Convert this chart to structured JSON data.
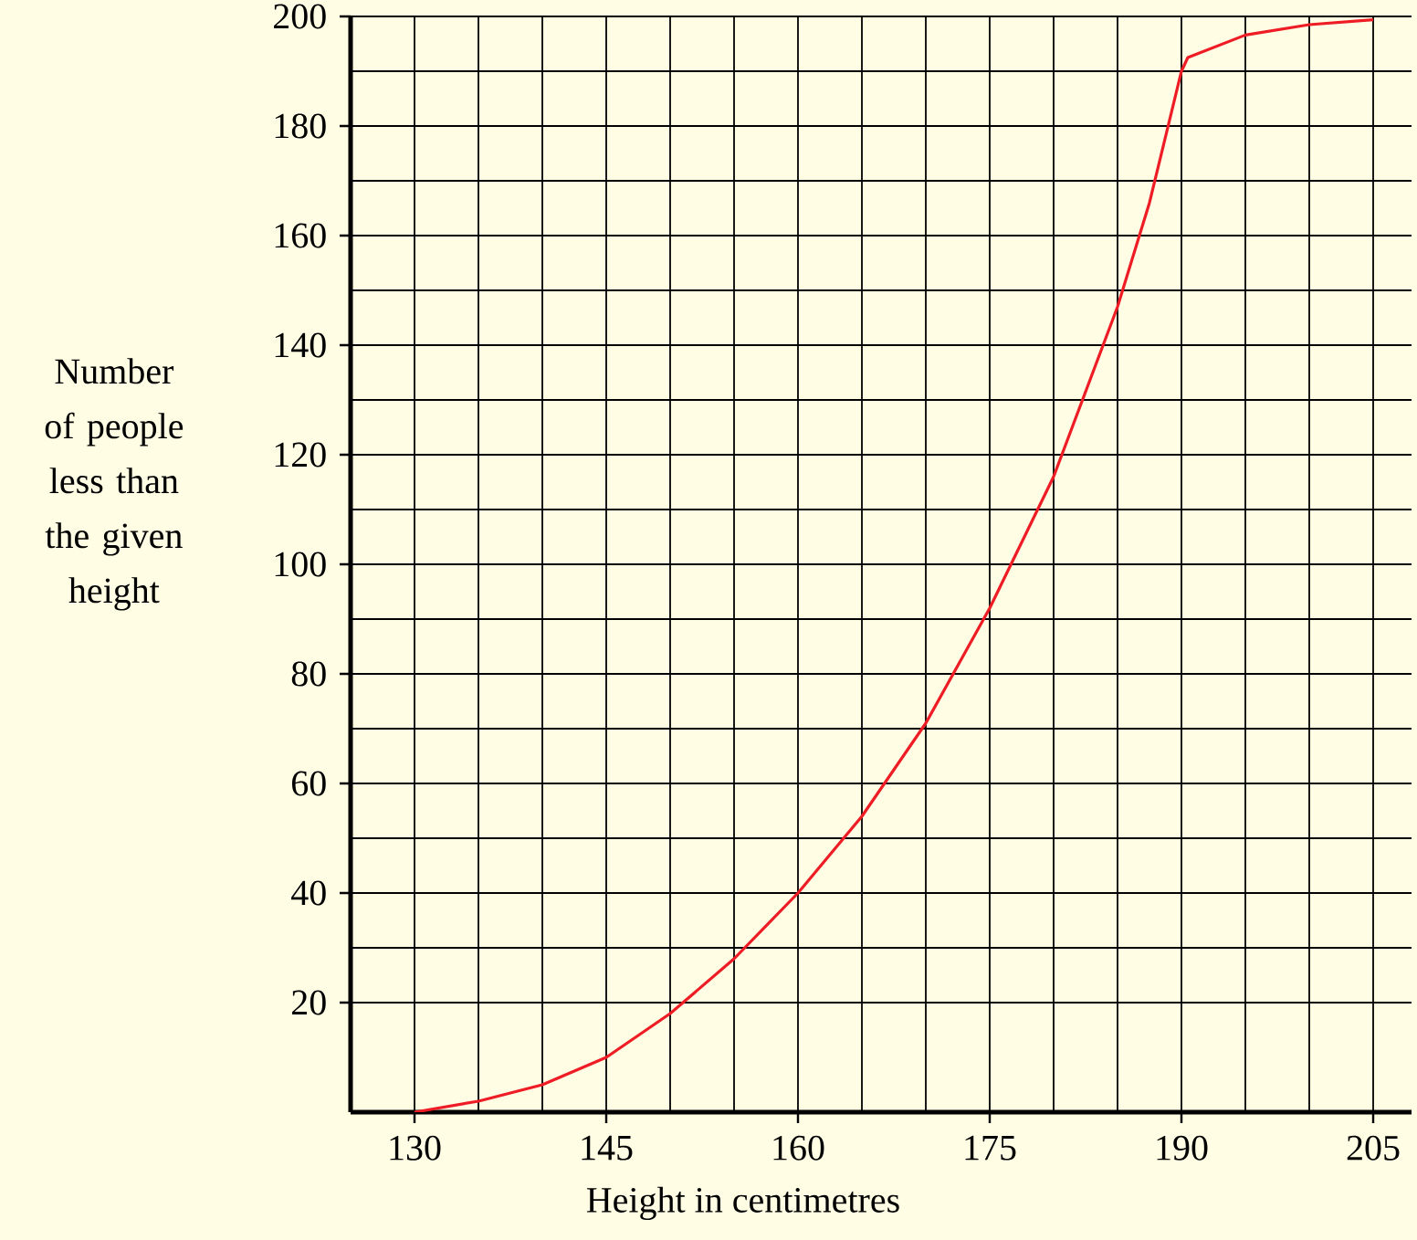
{
  "chart_data": {
    "type": "line",
    "xlabel": "Height in centimetres",
    "ylabel": "Number of people less than the given height",
    "series": [
      {
        "color": "#ee1c25",
        "x": [
          130,
          135,
          140,
          145,
          150,
          155,
          160,
          165,
          170,
          175,
          180,
          185,
          187.5,
          190,
          190.5,
          195,
          200,
          205
        ],
        "values": [
          0,
          2,
          5,
          10,
          18,
          28,
          40,
          54,
          71,
          92,
          116,
          147,
          166,
          190,
          192.5,
          196.6,
          198.5,
          199.4
        ]
      }
    ],
    "xlim": [
      125,
      208
    ],
    "ylim": [
      0,
      200
    ],
    "xticks": [
      130,
      145,
      160,
      175,
      190,
      205
    ],
    "yticks": [
      20,
      40,
      60,
      80,
      100,
      120,
      140,
      160,
      180,
      200
    ],
    "grid": true
  }
}
